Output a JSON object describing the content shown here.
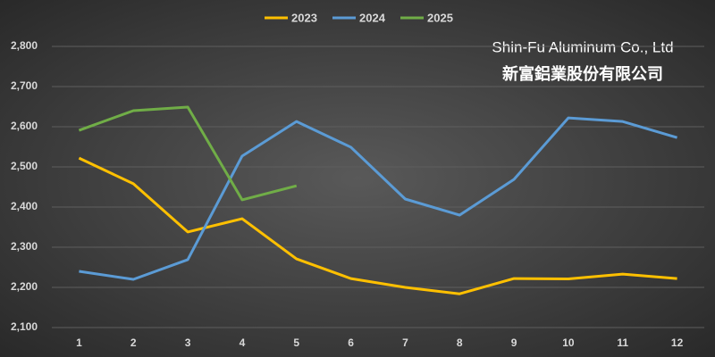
{
  "chart_data": {
    "type": "line",
    "annotations": [
      "Shin-Fu Aluminum Co., Ltd",
      "新富鋁業股份有限公司"
    ],
    "categories": [
      "1",
      "2",
      "3",
      "4",
      "5",
      "6",
      "7",
      "8",
      "9",
      "10",
      "11",
      "12"
    ],
    "series": [
      {
        "name": "2023",
        "color": "#ffc000",
        "values": [
          2522,
          2458,
          2338,
          2371,
          2271,
          2222,
          2200,
          2184,
          2222,
          2221,
          2233,
          2222
        ]
      },
      {
        "name": "2024",
        "color": "#5b9bd5",
        "values": [
          2240,
          2220,
          2269,
          2527,
          2613,
          2549,
          2420,
          2380,
          2469,
          2622,
          2613,
          2573
        ]
      },
      {
        "name": "2025",
        "color": "#70ad47",
        "values": [
          2591,
          2640,
          2649,
          2418,
          2453,
          null,
          null,
          null,
          null,
          null,
          null,
          null
        ]
      }
    ],
    "ylim": [
      2100,
      2800
    ],
    "yticks": [
      {
        "value": 2100,
        "label": "2,100"
      },
      {
        "value": 2200,
        "label": "2,200"
      },
      {
        "value": 2300,
        "label": "2,300"
      },
      {
        "value": 2400,
        "label": "2,400"
      },
      {
        "value": 2500,
        "label": "2,500"
      },
      {
        "value": 2600,
        "label": "2,600"
      },
      {
        "value": 2700,
        "label": "2,700"
      },
      {
        "value": 2800,
        "label": "2,800"
      }
    ],
    "grid": true,
    "legend": "top"
  }
}
